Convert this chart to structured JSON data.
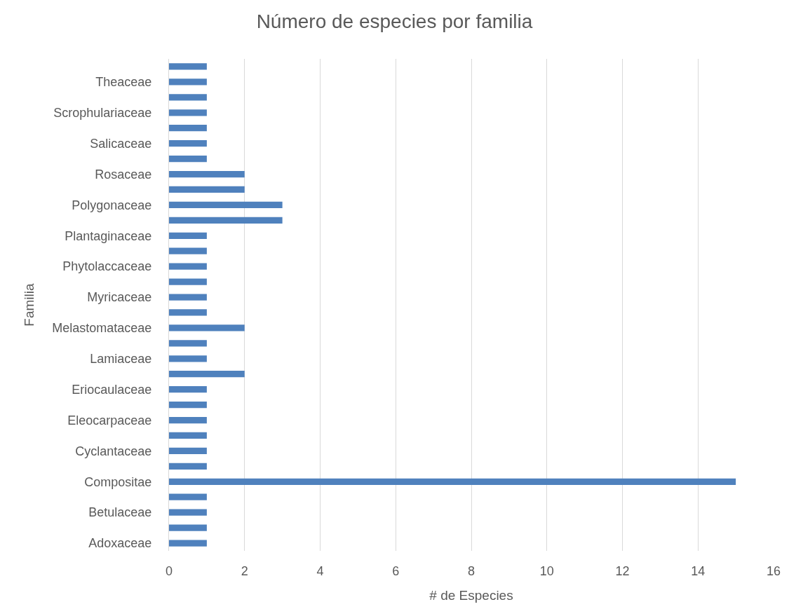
{
  "chart_data": {
    "type": "bar",
    "orientation": "horizontal",
    "title": "Número de especies por familia",
    "xlabel": "# de Especies",
    "ylabel": "Familia",
    "categories": [
      null,
      "Theaceae",
      null,
      "Scrophulariaceae",
      null,
      "Salicaceae",
      null,
      "Rosaceae",
      null,
      "Polygonaceae",
      null,
      "Plantaginaceae",
      null,
      "Phytolaccaceae",
      null,
      "Myricaceae",
      null,
      "Melastomataceae",
      null,
      "Lamiaceae",
      null,
      "Eriocaulaceae",
      null,
      "Eleocarpaceae",
      null,
      "Cyclantaceae",
      null,
      "Compositae",
      null,
      "Betulaceae",
      null,
      "Adoxaceae"
    ],
    "values": [
      1,
      1,
      1,
      1,
      1,
      1,
      1,
      2,
      2,
      3,
      3,
      1,
      1,
      1,
      1,
      1,
      1,
      2,
      1,
      1,
      2,
      1,
      1,
      1,
      1,
      1,
      1,
      15,
      1,
      1,
      1,
      1
    ],
    "color": "#4f81bd",
    "xlim": [
      0,
      16
    ],
    "xticks": [
      0,
      2,
      4,
      6,
      8,
      10,
      12,
      14,
      16
    ],
    "grid": "x",
    "legend": false
  }
}
